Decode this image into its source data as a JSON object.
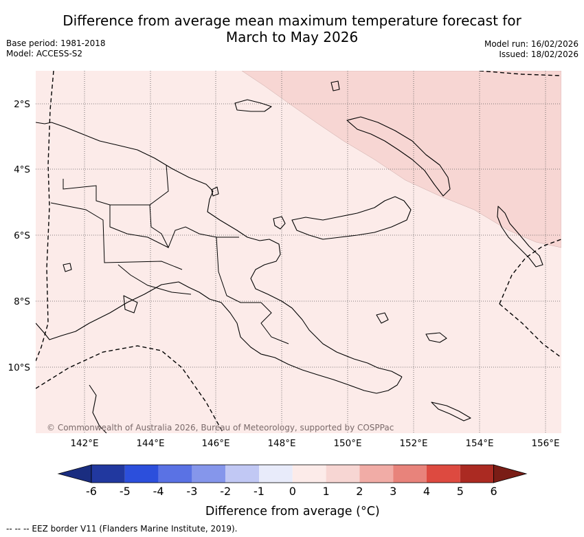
{
  "title": {
    "line1": "Difference from average mean maximum temperature forecast for",
    "line2": "March to May 2026"
  },
  "meta": {
    "base_period": "Base period: 1981-2018",
    "model": "Model: ACCESS-S2",
    "model_run": "Model run: 16/02/2026",
    "issued": "Issued: 18/02/2026"
  },
  "map": {
    "lon_range": [
      140.5,
      156.5
    ],
    "lat_range": [
      -12,
      -1
    ],
    "lon_ticks": [
      "142°E",
      "144°E",
      "146°E",
      "148°E",
      "150°E",
      "152°E",
      "154°E",
      "156°E"
    ],
    "lat_ticks": [
      "2°S",
      "4°S",
      "6°S",
      "8°S",
      "10°S"
    ],
    "gridlines": true,
    "colors": {
      "anomaly_0_to_1": "#fcebe9",
      "anomaly_1_to_2": "#f7d6d3",
      "coastline": "#000000",
      "eez_border": "#000000"
    },
    "credit": "© Commonwealth of Australia 2026, Bureau of Meteorology, supported by COSPPac"
  },
  "colorbar": {
    "ticks": [
      "-6",
      "-5",
      "-4",
      "-3",
      "-2",
      "-1",
      "0",
      "1",
      "2",
      "3",
      "4",
      "5",
      "6"
    ],
    "colors": [
      "#21389f",
      "#2c4fdc",
      "#5a72e4",
      "#8596eb",
      "#c1c8f4",
      "#e8ebfa",
      "#fcebe9",
      "#f7d6d3",
      "#f1aca6",
      "#e8837b",
      "#dd4a40",
      "#ab2a22"
    ],
    "under_color": "#1a2d80",
    "over_color": "#7a1d16",
    "label": "Difference from average (°C)"
  },
  "footnote": "--  --  -- EEZ border V11 (Flanders Marine Institute, 2019)."
}
